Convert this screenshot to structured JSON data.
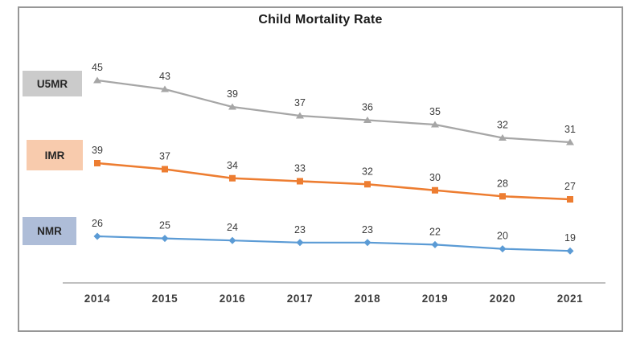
{
  "chart_data": {
    "type": "line",
    "title": "Child Mortality Rate",
    "categories": [
      "2014",
      "2015",
      "2016",
      "2017",
      "2018",
      "2019",
      "2020",
      "2021"
    ],
    "series": [
      {
        "name": "U5MR",
        "values": [
          45,
          43,
          39,
          37,
          36,
          35,
          32,
          31
        ],
        "color": "#A6A6A6",
        "marker": "triangle",
        "label_bg": "#CBCBCB"
      },
      {
        "name": "IMR",
        "values": [
          39,
          37,
          34,
          33,
          32,
          30,
          28,
          27
        ],
        "color": "#ED7D31",
        "marker": "square",
        "label_bg": "#F8CBAD"
      },
      {
        "name": "NMR",
        "values": [
          26,
          25,
          24,
          23,
          23,
          22,
          20,
          19
        ],
        "color": "#5B9BD5",
        "marker": "diamond",
        "label_bg": "#AEBDD8"
      }
    ],
    "data_labels": true,
    "legend_position": "left-inline",
    "x_axis": {
      "line_color": "#ABABAB",
      "label_color": "#3c3c3c"
    },
    "y_axis": {
      "visible": false
    },
    "grid": "off"
  }
}
